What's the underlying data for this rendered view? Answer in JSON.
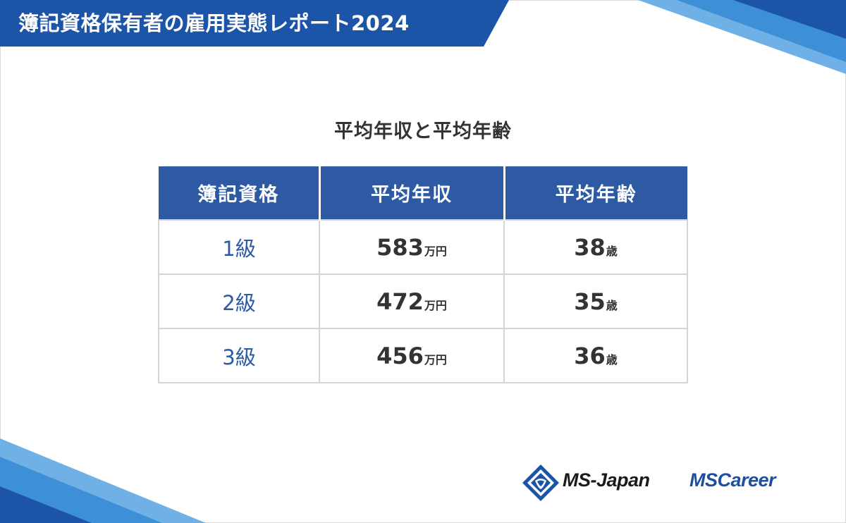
{
  "header": {
    "title": "簿記資格保有者の雇用実態レポート2024"
  },
  "table": {
    "title": "平均年収と平均年齢",
    "columns": [
      "簿記資格",
      "平均年収",
      "平均年齢"
    ],
    "rows": [
      {
        "grade": "1級",
        "income": "583",
        "income_unit": "万円",
        "age": "38",
        "age_unit": "歳"
      },
      {
        "grade": "2級",
        "income": "472",
        "income_unit": "万円",
        "age": "35",
        "age_unit": "歳"
      },
      {
        "grade": "3級",
        "income": "456",
        "income_unit": "万円",
        "age": "36",
        "age_unit": "歳"
      }
    ]
  },
  "logos": {
    "ms_japan": "MS-Japan",
    "ms_career": "MSCareer"
  },
  "colors": {
    "brand_blue": "#2e5aa4",
    "dark_blue": "#1c54a8",
    "light_blue": "#3d8fd6"
  }
}
